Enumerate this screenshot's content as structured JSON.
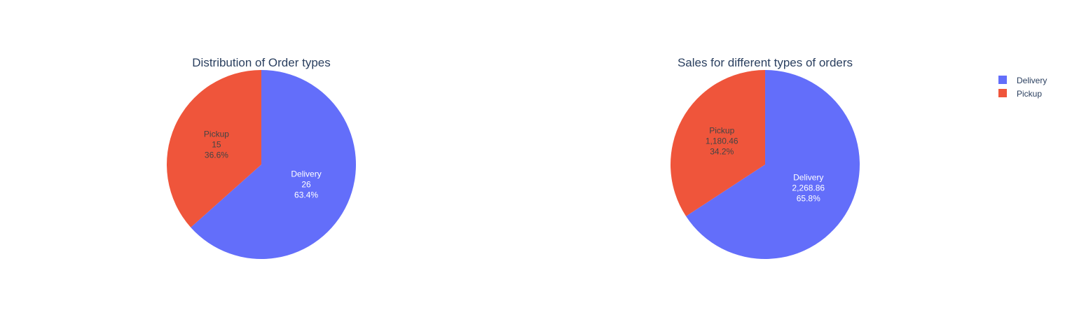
{
  "colors": {
    "Delivery": "#636efa",
    "Pickup": "#ef553b",
    "title": "#2a3f5f"
  },
  "legend": {
    "placement": "top-right",
    "items": [
      {
        "label": "Delivery",
        "color": "#636efa"
      },
      {
        "label": "Pickup",
        "color": "#ef553b"
      }
    ]
  },
  "chart_data": [
    {
      "type": "pie",
      "title": "Distribution of Order types",
      "labels": [
        "Delivery",
        "Pickup"
      ],
      "values": [
        26,
        15
      ],
      "value_text": [
        "26",
        "15"
      ],
      "percent_text": [
        "63.4%",
        "36.6%"
      ]
    },
    {
      "type": "pie",
      "title": "Sales for different types of orders",
      "labels": [
        "Delivery",
        "Pickup"
      ],
      "values": [
        2268.86,
        1180.46
      ],
      "value_text": [
        "2,268.86",
        "1,180.46"
      ],
      "percent_text": [
        "65.8%",
        "34.2%"
      ]
    }
  ]
}
